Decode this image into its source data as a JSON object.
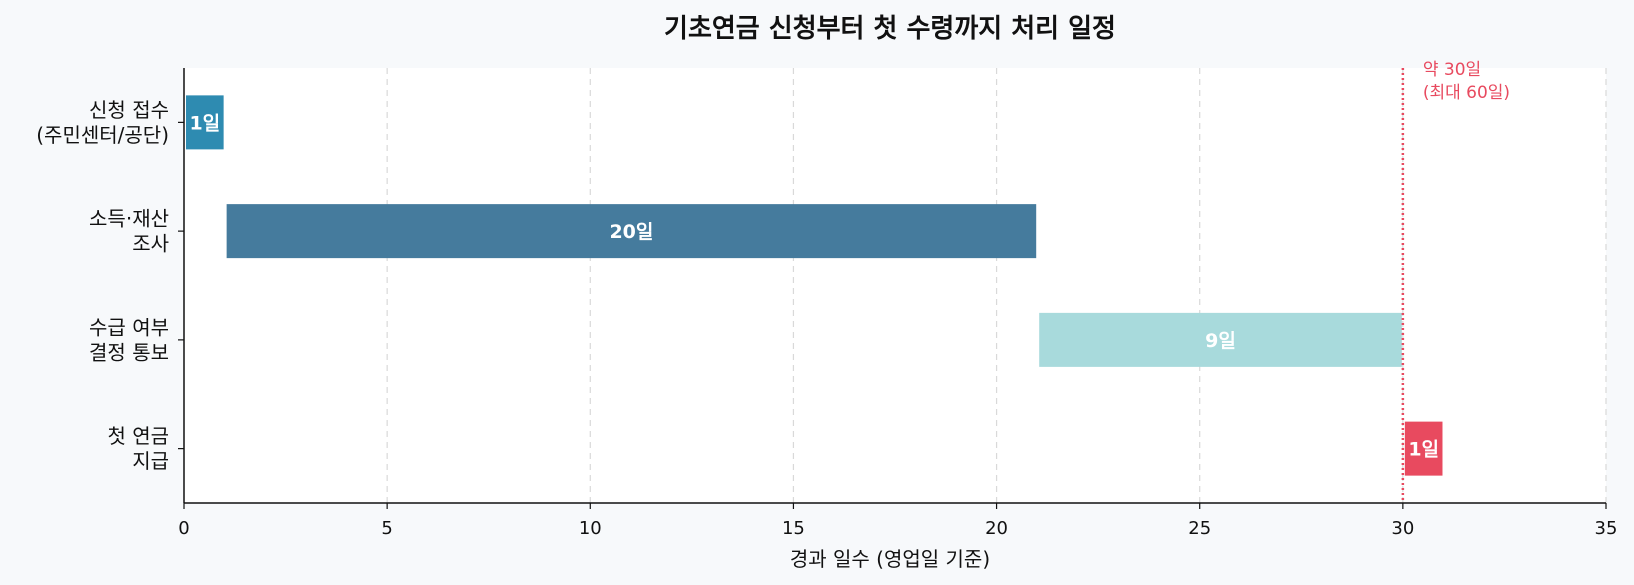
{
  "chart_data": {
    "type": "bar",
    "orientation": "horizontal-gantt",
    "title": "기초연금 신청부터 첫 수령까지 처리 일정",
    "xlabel": "경과 일수 (영업일 기준)",
    "xlim": [
      0,
      35
    ],
    "xticks": [
      0,
      5,
      10,
      15,
      20,
      25,
      30,
      35
    ],
    "grid": "x",
    "tasks": [
      {
        "label": [
          "신청 접수",
          "(주민센터/공단)"
        ],
        "start": 0,
        "duration": 1,
        "value_label": "1일",
        "color": "#2e8bb1"
      },
      {
        "label": [
          "소득·재산",
          "조사"
        ],
        "start": 1,
        "duration": 20,
        "value_label": "20일",
        "color": "#457b9d"
      },
      {
        "label": [
          "수급 여부",
          "결정 통보"
        ],
        "start": 21,
        "duration": 9,
        "value_label": "9일",
        "color": "#a8dadc"
      },
      {
        "label": [
          "첫 연금",
          "지급"
        ],
        "start": 30,
        "duration": 1,
        "value_label": "1일",
        "color": "#e84a5f"
      }
    ],
    "reference_line": {
      "x": 30,
      "color": "#e84a5f",
      "annotation": [
        "약 30일",
        "(최대 60일)"
      ]
    }
  }
}
